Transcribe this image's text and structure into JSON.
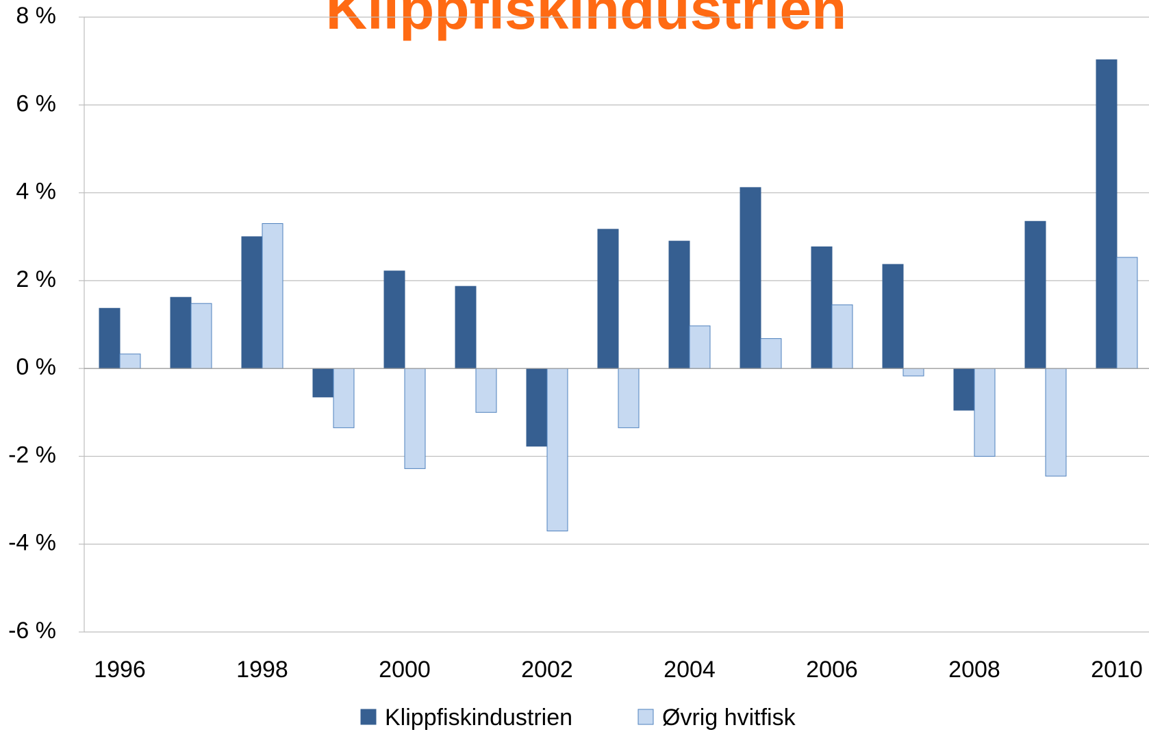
{
  "chart_data": {
    "type": "bar",
    "title": "Klippfiskindustrien",
    "categories": [
      "1996",
      null,
      "1998",
      null,
      "2000",
      null,
      "2002",
      null,
      "2004",
      null,
      "2006",
      null,
      "2008",
      null,
      "2010"
    ],
    "series": [
      {
        "name": "Klippfiskindustrien",
        "color": "#365f91",
        "values": [
          1.37,
          1.62,
          3.0,
          -0.65,
          2.22,
          1.87,
          -1.77,
          3.17,
          2.9,
          4.12,
          2.77,
          2.37,
          -0.95,
          3.35,
          7.03
        ]
      },
      {
        "name": "Øvrig hvitfisk",
        "color": "#c6d9f1",
        "values": [
          0.33,
          1.48,
          3.3,
          -1.35,
          -2.28,
          -1.0,
          -3.7,
          -1.35,
          0.97,
          0.68,
          1.45,
          -0.17,
          -2.0,
          -2.45,
          2.53
        ]
      }
    ],
    "ylim": [
      -6,
      8
    ],
    "yticks": [
      {
        "value": -6,
        "label": "-6 %"
      },
      {
        "value": -4,
        "label": "-4 %"
      },
      {
        "value": -2,
        "label": "-2 %"
      },
      {
        "value": 0,
        "label": "0 %"
      },
      {
        "value": 2,
        "label": "2 %"
      },
      {
        "value": 4,
        "label": "4 %"
      },
      {
        "value": 6,
        "label": "6 %"
      },
      {
        "value": 8,
        "label": "8 %"
      }
    ],
    "grid": true,
    "legend": "bottom"
  }
}
